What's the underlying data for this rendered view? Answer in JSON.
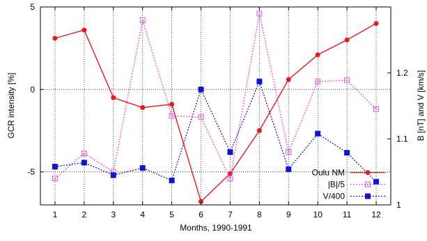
{
  "chart_data": {
    "type": "line",
    "xlabel": "Months, 1990-1991",
    "ylabel_left": "GCR intensity [%]",
    "ylabel_right": "B [nT] and V [km/s]",
    "x": [
      1,
      2,
      3,
      4,
      5,
      6,
      7,
      8,
      9,
      10,
      11,
      12
    ],
    "x_ticks": [
      "1",
      "2",
      "3",
      "4",
      "5",
      "6",
      "7",
      "8",
      "9",
      "10",
      "11",
      "12"
    ],
    "xlim": [
      0.5,
      12.5
    ],
    "ylim_left": [
      -7,
      5
    ],
    "yticks_left": [
      "5",
      "0",
      "-5"
    ],
    "ylim_right": [
      1.0,
      1.3
    ],
    "yticks_right": [
      "1.2",
      "1.1",
      "1"
    ],
    "grid": true,
    "legend_position": "bottom-right",
    "series": [
      {
        "name": "Oulu NM",
        "axis": "left",
        "color": "#e8191f",
        "line_style": "solid",
        "marker": "filled-circle",
        "values": [
          3.1,
          3.6,
          -0.5,
          -1.1,
          -0.9,
          -6.8,
          -5.1,
          -2.5,
          0.6,
          2.1,
          3.0,
          4.0
        ]
      },
      {
        "name": "|B|/5",
        "axis": "right",
        "color": "#e84fe0",
        "line_style": "dotted",
        "marker": "open-square",
        "values": [
          1.04,
          1.078,
          1.05,
          1.28,
          1.135,
          1.133,
          1.04,
          1.29,
          1.08,
          1.187,
          1.189,
          1.145
        ]
      },
      {
        "name": "V/400",
        "axis": "right",
        "color": "#1313d6",
        "line_style": "dotted",
        "marker": "filled-square",
        "values": [
          1.058,
          1.064,
          1.045,
          1.056,
          1.037,
          1.175,
          1.08,
          1.187,
          1.054,
          1.108,
          1.079,
          1.035
        ]
      }
    ]
  }
}
